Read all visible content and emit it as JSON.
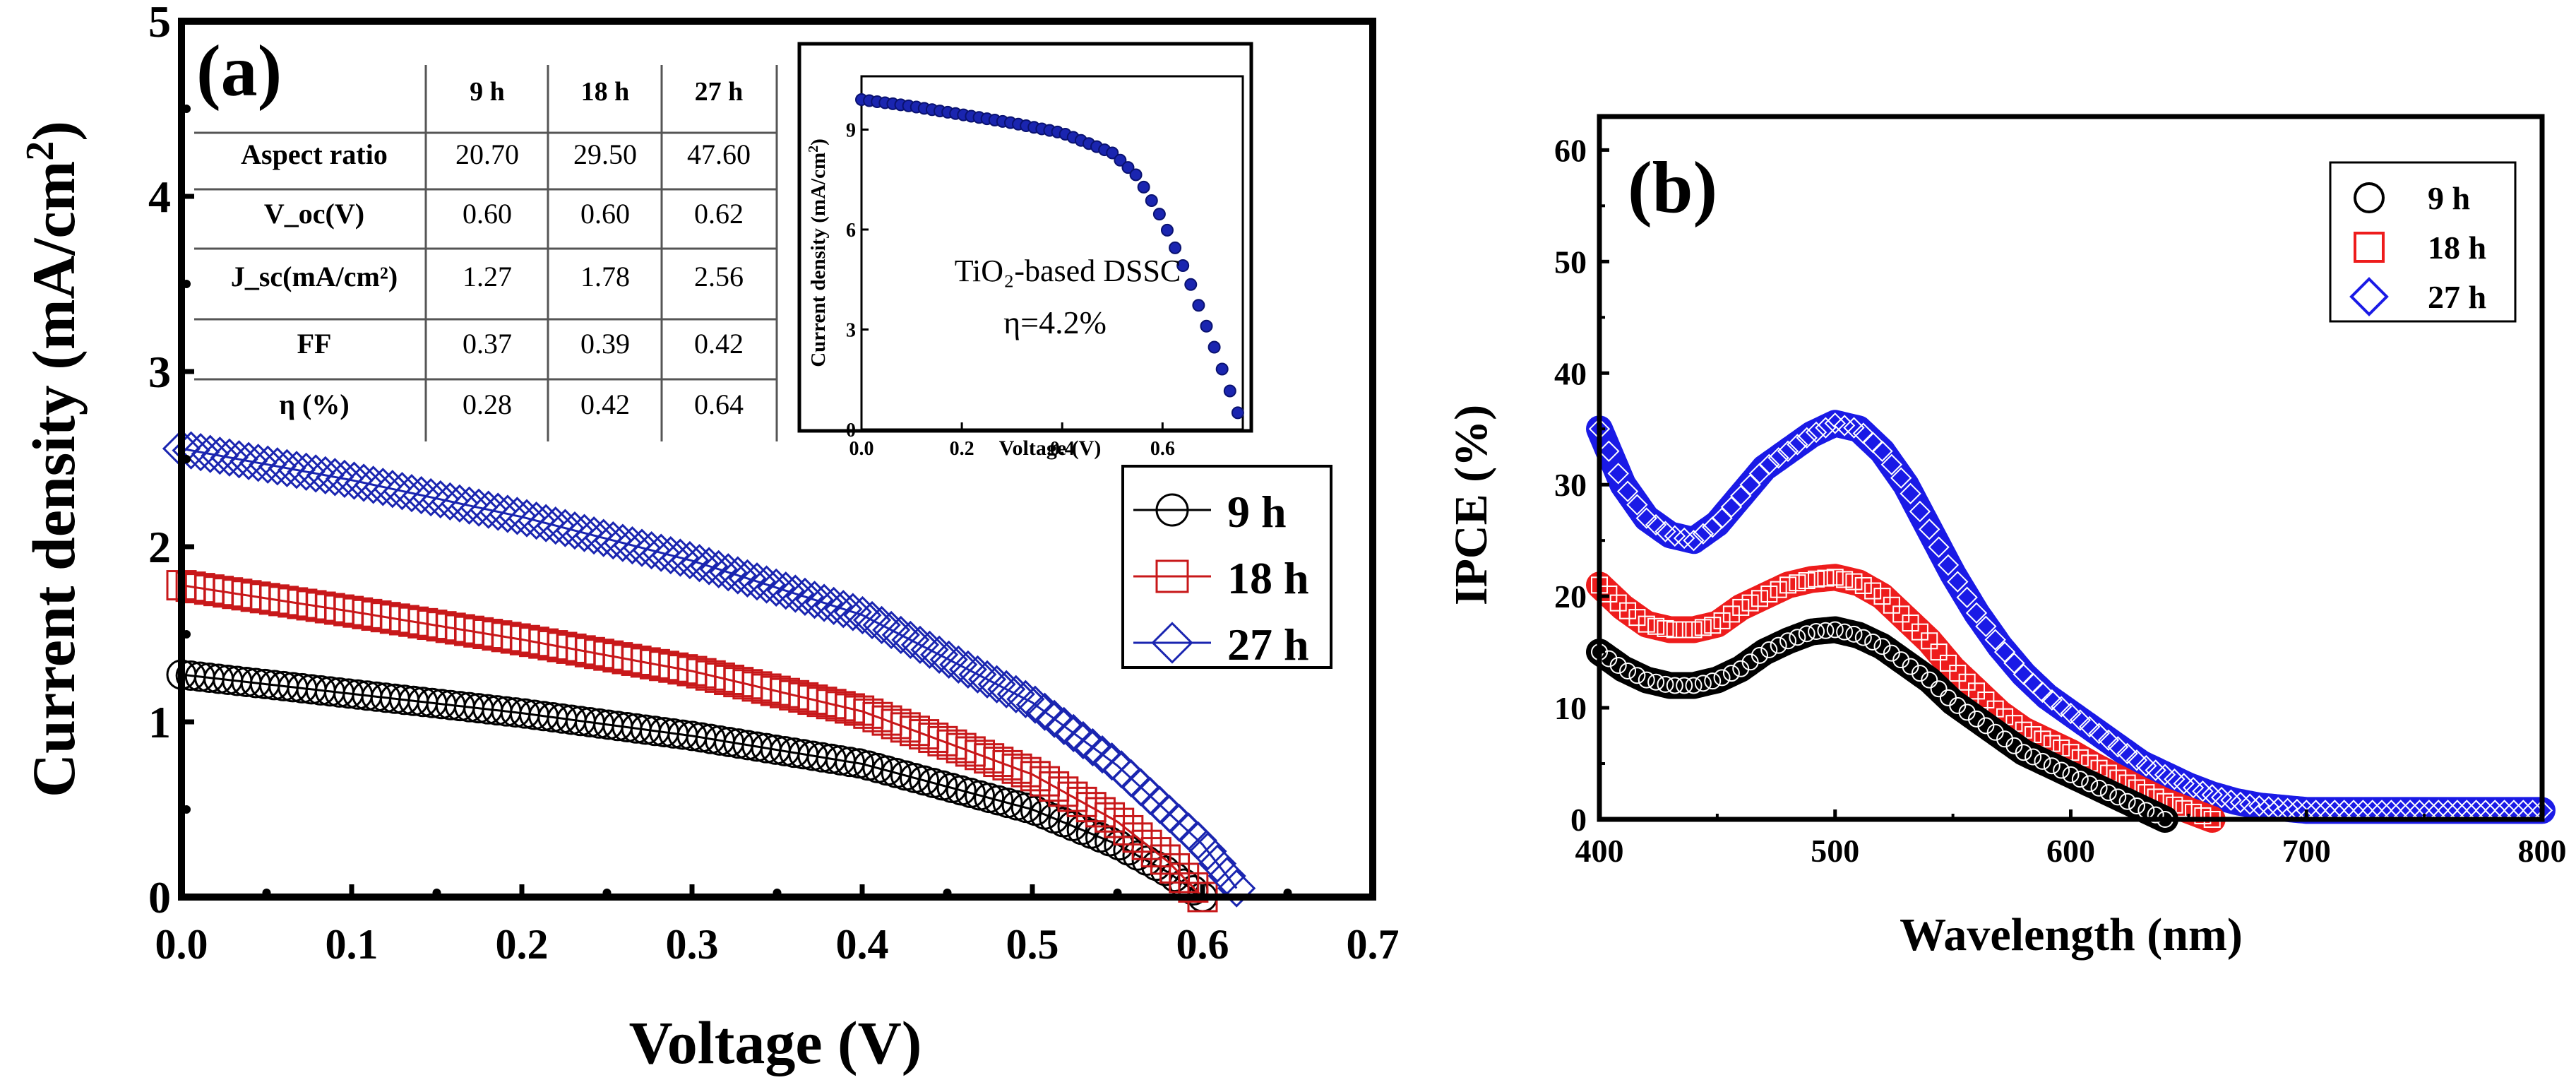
{
  "chart_data": [
    {
      "type": "line",
      "panel_label": "(a)",
      "xlabel": "Voltage (V)",
      "ylabel": "Current density (mA/cm",
      "ylabel_sup": "2",
      "ylabel_close": ")",
      "xlim": [
        0.0,
        0.7
      ],
      "ylim": [
        0,
        5
      ],
      "xticks": [
        "0.0",
        "0.1",
        "0.2",
        "0.3",
        "0.4",
        "0.5",
        "0.6",
        "0.7"
      ],
      "yticks": [
        "0",
        "1",
        "2",
        "3",
        "4",
        "5"
      ],
      "legend_position": "right",
      "series": [
        {
          "name": "9 h",
          "marker": "circle",
          "color": "#000000",
          "jsc": 1.27,
          "voc": 0.6,
          "x": [
            0.0,
            0.1,
            0.2,
            0.3,
            0.4,
            0.5,
            0.55,
            0.58,
            0.6
          ],
          "y": [
            1.27,
            1.16,
            1.05,
            0.92,
            0.76,
            0.5,
            0.3,
            0.14,
            0.0
          ]
        },
        {
          "name": "18 h",
          "marker": "square",
          "color": "#c8181a",
          "jsc": 1.78,
          "voc": 0.6,
          "x": [
            0.0,
            0.1,
            0.2,
            0.3,
            0.4,
            0.5,
            0.55,
            0.58,
            0.6
          ],
          "y": [
            1.78,
            1.63,
            1.47,
            1.29,
            1.06,
            0.7,
            0.43,
            0.2,
            0.0
          ]
        },
        {
          "name": "27 h",
          "marker": "diamond",
          "color": "#1a25b0",
          "jsc": 2.56,
          "voc": 0.62,
          "x": [
            0.0,
            0.1,
            0.2,
            0.3,
            0.4,
            0.5,
            0.55,
            0.6,
            0.62
          ],
          "y": [
            2.56,
            2.38,
            2.17,
            1.92,
            1.61,
            1.11,
            0.75,
            0.3,
            0.05
          ]
        }
      ],
      "table": {
        "columns": [
          "",
          "9 h",
          "18 h",
          "27 h"
        ],
        "rows": [
          [
            "Aspect ratio",
            "20.70",
            "29.50",
            "47.60"
          ],
          [
            "V_oc(V)",
            "0.60",
            "0.60",
            "0.62"
          ],
          [
            "J_sc(mA/cm²)",
            "1.27",
            "1.78",
            "2.56"
          ],
          [
            "FF",
            "0.37",
            "0.39",
            "0.42"
          ],
          [
            "η (%)",
            "0.28",
            "0.42",
            "0.64"
          ]
        ]
      },
      "inset": {
        "type": "scatter",
        "xlabel": "Voltage (V)",
        "ylabel": "Current density (mA/cm",
        "ylabel_sup": "2",
        "ylabel_close": ")",
        "xlim": [
          0.0,
          0.76
        ],
        "ylim": [
          0,
          10.6
        ],
        "xticks": [
          "0.0",
          "0.2",
          "0.4",
          "0.6"
        ],
        "yticks": [
          "0",
          "3",
          "6",
          "9"
        ],
        "annotation_line1": "TiO₂-based DSSC",
        "annotation_line2": "η=4.2%",
        "series": {
          "name": "TiO2-based DSSC",
          "color": "#1a25b0",
          "jsc": 9.9,
          "voc": 0.75,
          "x": [
            0.0,
            0.1,
            0.2,
            0.3,
            0.4,
            0.5,
            0.55,
            0.6,
            0.65,
            0.7,
            0.75
          ],
          "y": [
            9.9,
            9.7,
            9.45,
            9.2,
            8.9,
            8.3,
            7.6,
            6.3,
            4.6,
            2.6,
            0.5
          ]
        }
      }
    },
    {
      "type": "line",
      "panel_label": "(b)",
      "xlabel": "Wavelength (nm)",
      "ylabel": "IPCE (%)",
      "xlim": [
        400,
        800
      ],
      "ylim": [
        0,
        63
      ],
      "xticks": [
        "400",
        "500",
        "600",
        "700",
        "800"
      ],
      "yticks": [
        "0",
        "10",
        "20",
        "30",
        "40",
        "50",
        "60"
      ],
      "legend_position": "top-right",
      "series": [
        {
          "name": "9 h",
          "marker": "circle",
          "color": "#000000",
          "x": [
            400,
            410,
            420,
            430,
            440,
            450,
            460,
            470,
            480,
            490,
            500,
            510,
            520,
            530,
            540,
            550,
            560,
            570,
            580,
            590,
            600,
            610,
            620,
            630,
            640
          ],
          "y": [
            15,
            13.5,
            12.5,
            12,
            12,
            12.5,
            13.5,
            15,
            16,
            16.8,
            17,
            16.5,
            15.5,
            14,
            12.5,
            10.5,
            9,
            7.5,
            6,
            5,
            4,
            3,
            2,
            1,
            0
          ]
        },
        {
          "name": "18 h",
          "marker": "square",
          "color": "#ee1c1c",
          "x": [
            400,
            410,
            420,
            430,
            440,
            450,
            460,
            470,
            480,
            490,
            500,
            510,
            520,
            530,
            540,
            550,
            560,
            570,
            580,
            590,
            600,
            610,
            620,
            630,
            640,
            650,
            660
          ],
          "y": [
            21,
            19,
            17.5,
            17,
            17,
            17.5,
            19,
            20,
            21,
            21.5,
            21.7,
            21.2,
            20,
            18,
            16,
            13.5,
            11.5,
            9.5,
            8,
            7,
            6,
            4.8,
            3.7,
            2.6,
            1.6,
            0.8,
            0
          ]
        },
        {
          "name": "27 h",
          "marker": "diamond",
          "color": "#1a1ae6",
          "x": [
            400,
            410,
            420,
            430,
            440,
            450,
            460,
            470,
            480,
            490,
            500,
            510,
            520,
            530,
            540,
            550,
            560,
            570,
            580,
            590,
            600,
            610,
            620,
            630,
            640,
            650,
            660,
            670,
            680,
            690,
            700,
            750,
            800
          ],
          "y": [
            35,
            30,
            27,
            25.5,
            25,
            26.5,
            29,
            31.5,
            33,
            34.5,
            35.5,
            35,
            33,
            30,
            26,
            22,
            18.5,
            15.5,
            13,
            11,
            9.5,
            8,
            6.5,
            5,
            4,
            3,
            2.2,
            1.6,
            1.2,
            1,
            0.8,
            0.8,
            0.8
          ]
        }
      ]
    }
  ]
}
